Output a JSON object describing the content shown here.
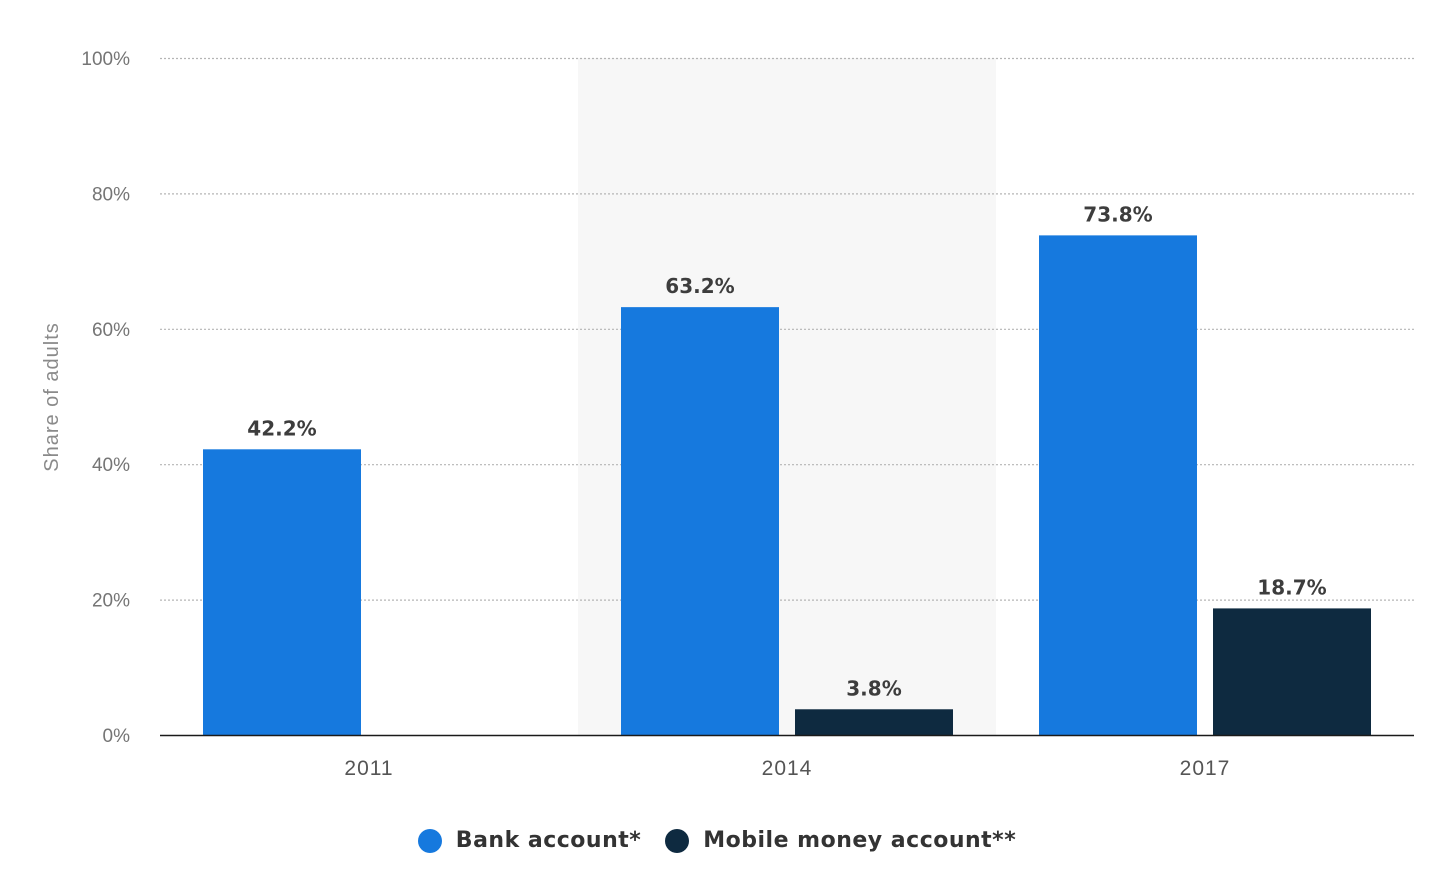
{
  "chart_data": {
    "type": "bar",
    "categories": [
      "2011",
      "2014",
      "2017"
    ],
    "series": [
      {
        "name": "Bank account*",
        "values": [
          42.2,
          63.2,
          73.8
        ],
        "color": "#1679de",
        "labels": [
          "42.2%",
          "63.2%",
          "73.8%"
        ]
      },
      {
        "name": "Mobile money account**",
        "values": [
          null,
          3.8,
          18.7
        ],
        "color": "#0e2a40",
        "labels": [
          "",
          "3.8%",
          "18.7%"
        ]
      }
    ],
    "ylabel": "Share of adults",
    "ylim": [
      0,
      100
    ],
    "yticks": [
      0,
      20,
      40,
      60,
      80,
      100
    ],
    "ytick_labels": [
      "0%",
      "20%",
      "40%",
      "60%",
      "80%",
      "100%"
    ],
    "grid": true,
    "highlighted_category": "2014",
    "highlight_color": "#f7f7f7",
    "legend_position": "bottom-center"
  }
}
